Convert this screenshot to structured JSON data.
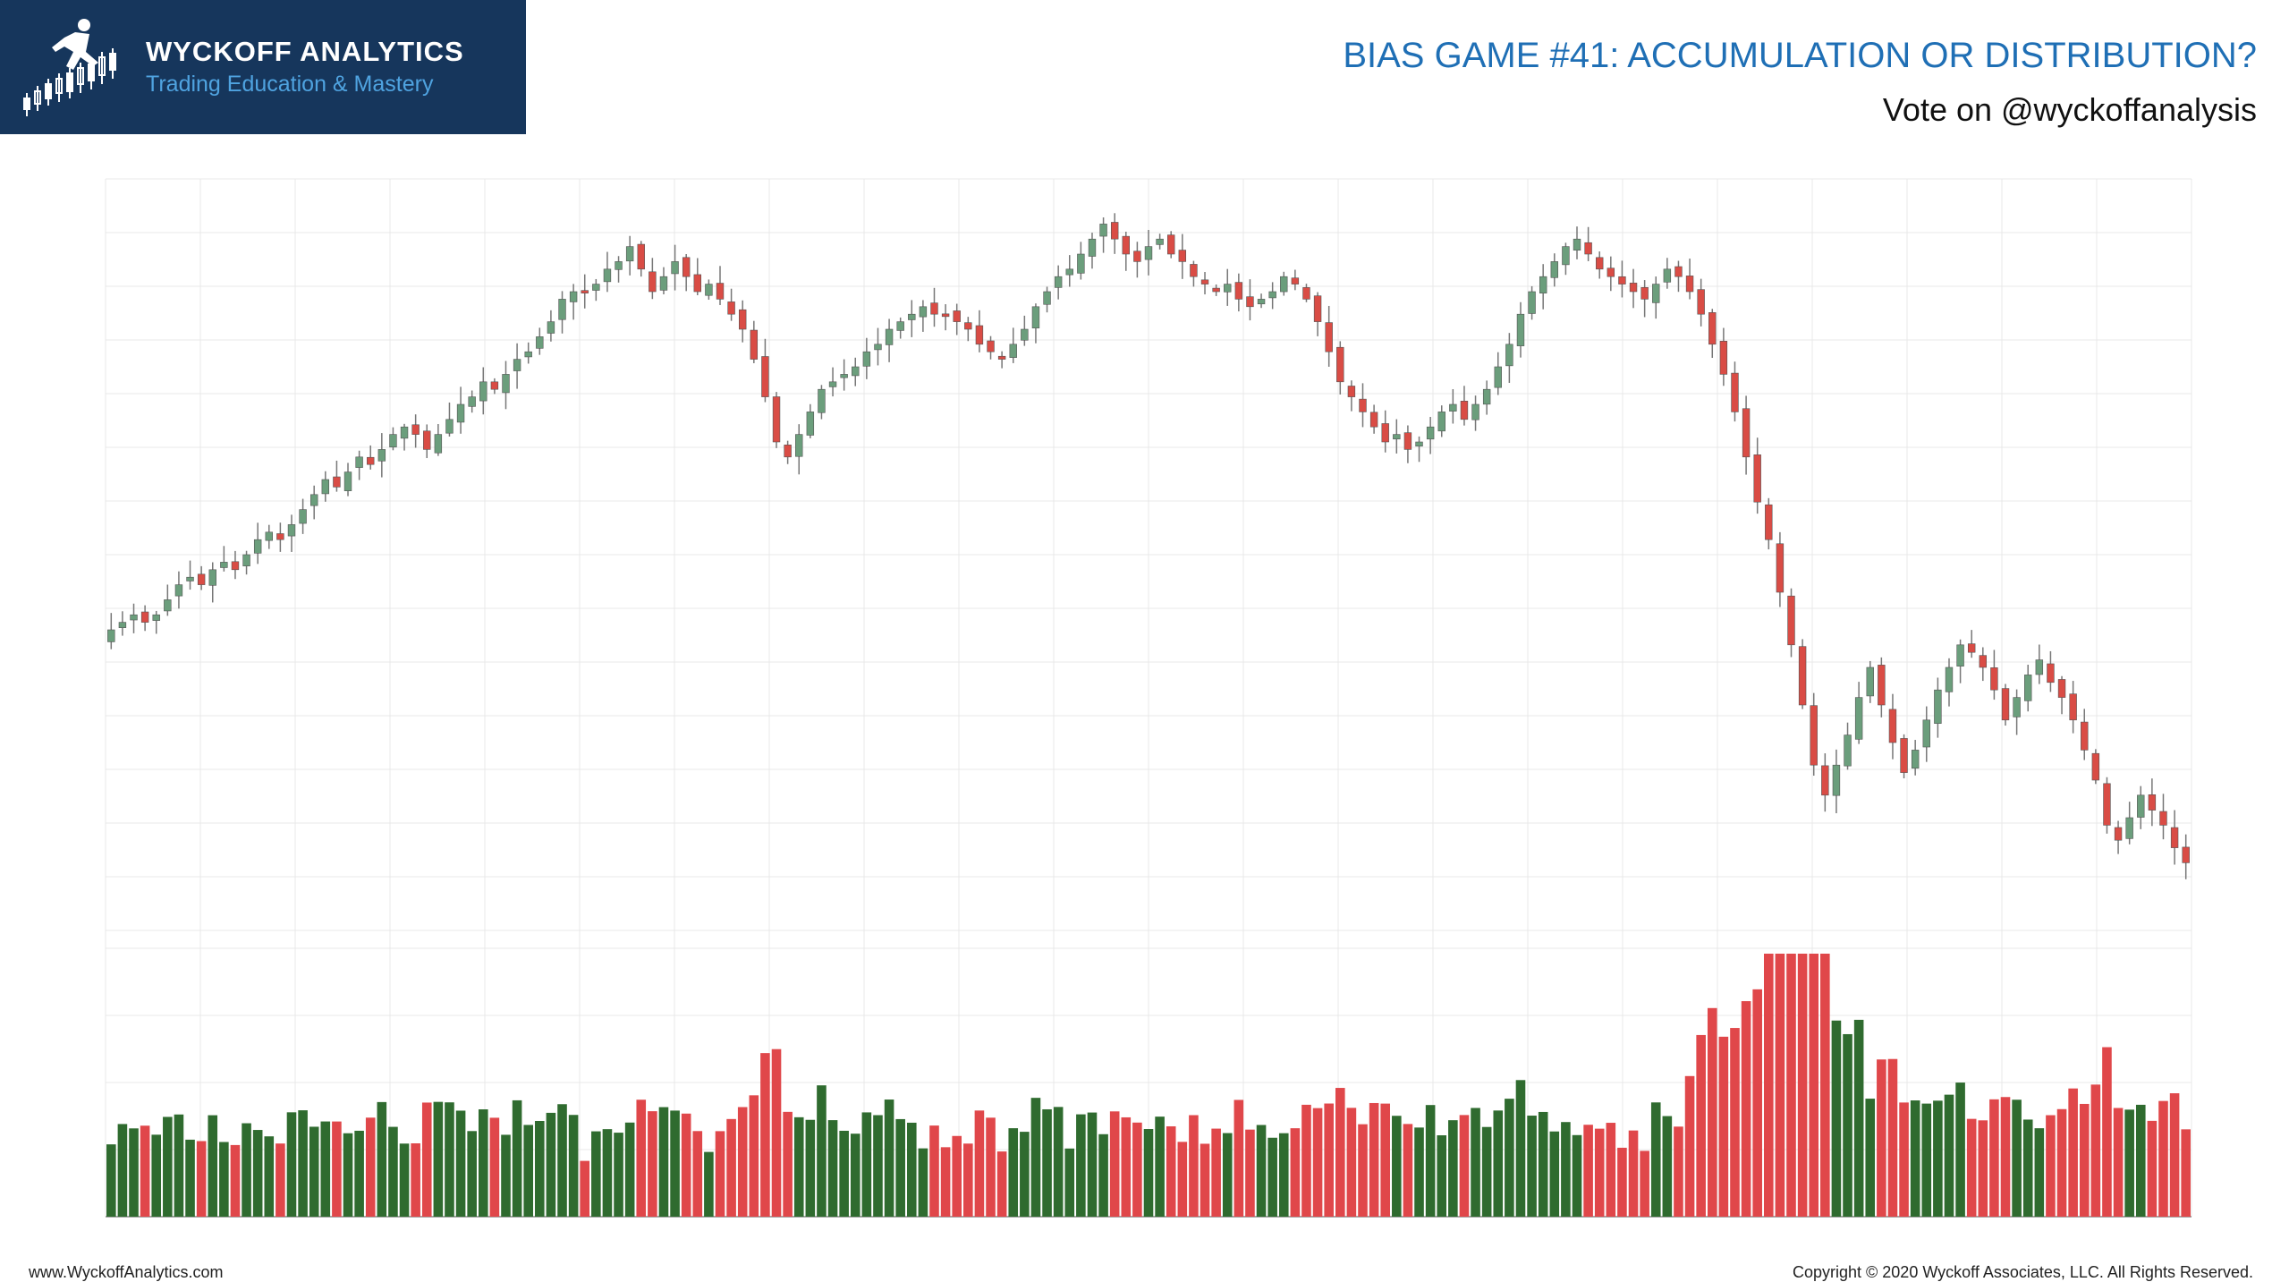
{
  "brand": {
    "name": "WYCKOFF ANALYTICS",
    "tagline": "Trading Education & Mastery"
  },
  "header": {
    "title": "BIAS GAME #41: ACCUMULATION OR DISTRIBUTION?",
    "subtitle": "Vote on @wyckoffanalysis"
  },
  "footer": {
    "website": "www.WyckoffAnalytics.com",
    "copyright": "Copyright © 2020 Wyckoff Associates, LLC. All Rights Reserved."
  },
  "colors": {
    "up": "#6b9e7c",
    "down": "#d94c45",
    "volume_up": "#2f6b2f",
    "volume_down": "#e0474a",
    "logo_bg": "#16365c",
    "title": "#1f6fb5"
  },
  "chart_data": {
    "type": "candlestick",
    "price_axis_labels": false,
    "grid": true,
    "price_ylim": [
      0,
      100
    ],
    "volume_ylim": [
      0,
      100
    ],
    "close_path": [
      40,
      41,
      42,
      41,
      42,
      44,
      46,
      47,
      46,
      48,
      49,
      48,
      50,
      52,
      53,
      52,
      54,
      56,
      58,
      60,
      59,
      61,
      63,
      62,
      64,
      66,
      67,
      66,
      64,
      66,
      68,
      70,
      71,
      73,
      72,
      74,
      76,
      77,
      79,
      81,
      84,
      85,
      85,
      86,
      88,
      89,
      91,
      88,
      85,
      87,
      89,
      87,
      85,
      86,
      84,
      82,
      80,
      76,
      71,
      65,
      63,
      66,
      69,
      72,
      73,
      74,
      75,
      77,
      78,
      80,
      81,
      82,
      83,
      82,
      82,
      81,
      80,
      78,
      77,
      76,
      78,
      80,
      83,
      85,
      87,
      88,
      90,
      92,
      94,
      92,
      90,
      89,
      91,
      92,
      90,
      89,
      87,
      86,
      85,
      86,
      84,
      83,
      84,
      85,
      87,
      86,
      84,
      81,
      77,
      73,
      71,
      69,
      67,
      65,
      66,
      64,
      65,
      67,
      69,
      70,
      68,
      70,
      72,
      75,
      78,
      82,
      85,
      87,
      89,
      91,
      92,
      90,
      88,
      87,
      86,
      85,
      84,
      86,
      88,
      87,
      85,
      82,
      78,
      74,
      69,
      63,
      57,
      52,
      45,
      38,
      30,
      22,
      18,
      22,
      26,
      31,
      35,
      30,
      25,
      21,
      24,
      28,
      32,
      35,
      38,
      37,
      35,
      32,
      28,
      31,
      34,
      36,
      33,
      31,
      28,
      24,
      20,
      14,
      12,
      15,
      18,
      16,
      14,
      11,
      9
    ]
  }
}
